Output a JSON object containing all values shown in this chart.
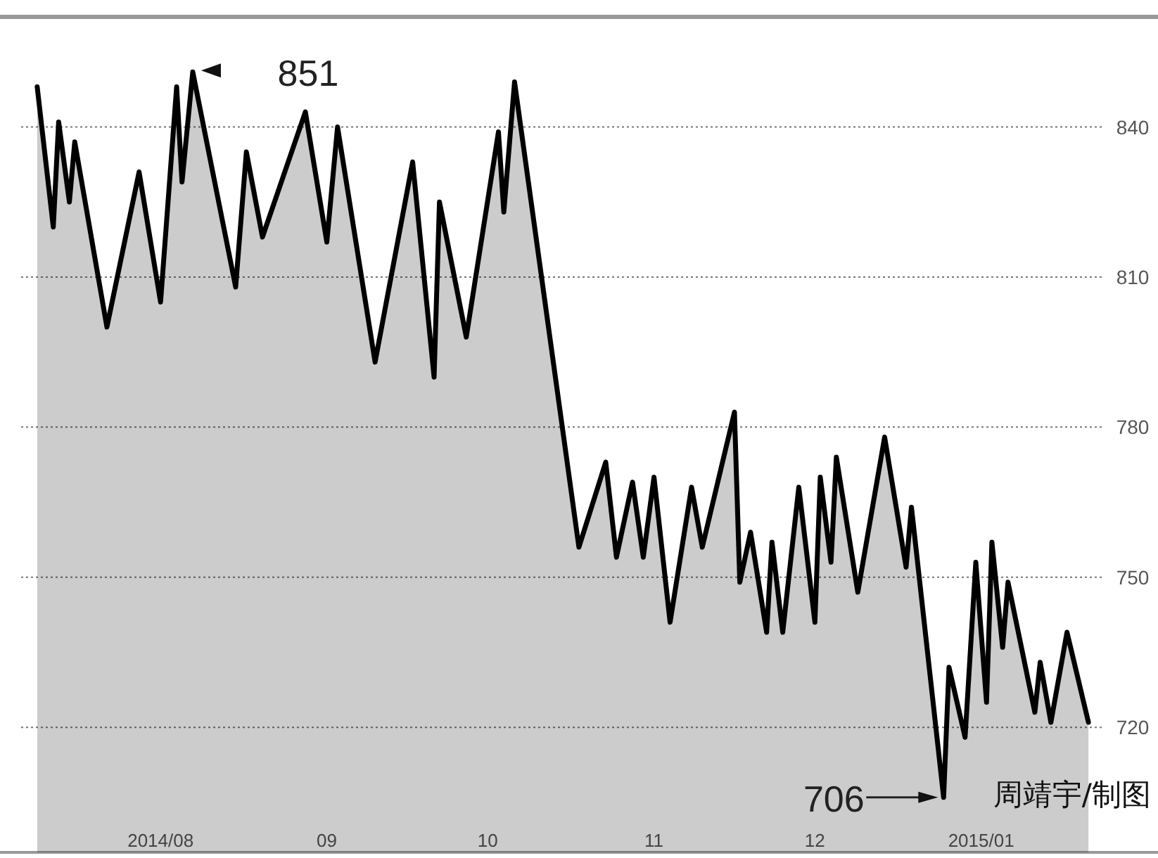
{
  "chart_data": {
    "type": "area",
    "x": [
      "2014-07-09",
      "2014-07-12",
      "2014-07-13",
      "2014-07-15",
      "2014-07-16",
      "2014-07-22",
      "2014-07-28",
      "2014-08-01",
      "2014-08-04",
      "2014-08-05",
      "2014-08-07",
      "2014-08-15",
      "2014-08-17",
      "2014-08-20",
      "2014-08-28",
      "2014-09-01",
      "2014-09-03",
      "2014-09-10",
      "2014-09-17",
      "2014-09-21",
      "2014-09-22",
      "2014-09-27",
      "2014-10-03",
      "2014-10-04",
      "2014-10-06",
      "2014-10-18",
      "2014-10-23",
      "2014-10-25",
      "2014-10-28",
      "2014-10-30",
      "2014-11-01",
      "2014-11-04",
      "2014-11-08",
      "2014-11-10",
      "2014-11-16",
      "2014-11-17",
      "2014-11-19",
      "2014-11-22",
      "2014-11-23",
      "2014-11-25",
      "2014-11-28",
      "2014-12-01",
      "2014-12-02",
      "2014-12-04",
      "2014-12-05",
      "2014-12-09",
      "2014-12-14",
      "2014-12-18",
      "2014-12-19",
      "2014-12-25",
      "2014-12-26",
      "2014-12-29",
      "2014-12-31",
      "2015-01-02",
      "2015-01-03",
      "2015-01-05",
      "2015-01-06",
      "2015-01-11",
      "2015-01-12",
      "2015-01-14",
      "2015-01-17",
      "2015-01-21"
    ],
    "series": [
      {
        "color": "#000000",
        "values": [
          848,
          820,
          841,
          825,
          837,
          800,
          831,
          805,
          848,
          829,
          851,
          808,
          835,
          818,
          843,
          817,
          840,
          793,
          833,
          790,
          825,
          798,
          839,
          823,
          849,
          756,
          773,
          754,
          769,
          754,
          770,
          741,
          768,
          756,
          783,
          749,
          759,
          739,
          757,
          739,
          768,
          741,
          770,
          753,
          774,
          747,
          778,
          752,
          764,
          706,
          732,
          718,
          753,
          725,
          757,
          736,
          749,
          723,
          733,
          721,
          739,
          721
        ]
      }
    ],
    "xlim": [
      "2014-07-06",
      "2015-01-24"
    ],
    "xticks": [
      {
        "value": "2014-08-01",
        "label": "2014/08"
      },
      {
        "value": "2014-09-01",
        "label": "09"
      },
      {
        "value": "2014-10-01",
        "label": "10"
      },
      {
        "value": "2014-11-01",
        "label": "11"
      },
      {
        "value": "2014-12-01",
        "label": "12"
      },
      {
        "value": "2015-01-01",
        "label": "2015/01"
      }
    ],
    "ylim": [
      695,
      862
    ],
    "yticks": [
      720,
      750,
      780,
      810,
      840
    ],
    "grid": "y",
    "annotations": [
      {
        "text": "851",
        "x": "2014-08-07",
        "y": 851
      },
      {
        "text": "706",
        "x": "2014-12-25",
        "y": 706
      },
      "周靖宇/制图"
    ]
  }
}
